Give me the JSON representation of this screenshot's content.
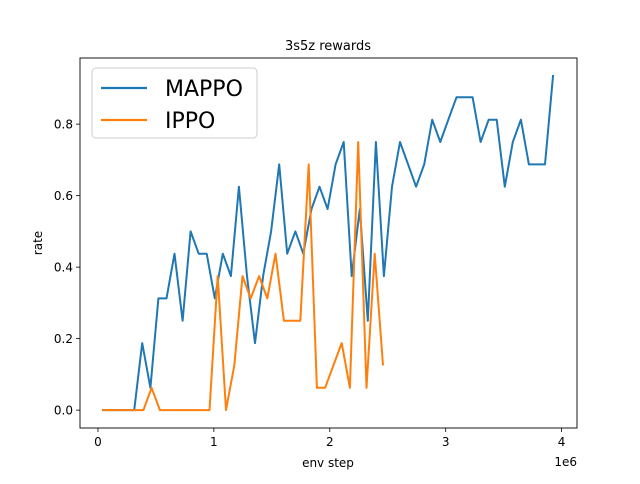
{
  "chart_data": {
    "type": "line",
    "title": "3s5z rewards",
    "xlabel": "env step",
    "ylabel": "rate",
    "x_multiplier_label": "1e6",
    "xlim": [
      -0.155,
      4.133
    ],
    "ylim": [
      -0.05,
      0.985
    ],
    "x_ticks": [
      0,
      1,
      2,
      3,
      4
    ],
    "x_tick_labels": [
      "0",
      "1",
      "2",
      "3",
      "4"
    ],
    "y_ticks": [
      0.0,
      0.2,
      0.4,
      0.6,
      0.8
    ],
    "y_tick_labels": [
      "0.0",
      "0.2",
      "0.4",
      "0.6",
      "0.8"
    ],
    "grid": false,
    "legend_position": "top-left",
    "series": [
      {
        "name": "MAPPO",
        "color": "#1f77b4",
        "x": [
          0.035,
          0.104,
          0.174,
          0.243,
          0.313,
          0.382,
          0.452,
          0.521,
          0.591,
          0.66,
          0.73,
          0.799,
          0.869,
          0.938,
          1.008,
          1.077,
          1.147,
          1.216,
          1.286,
          1.355,
          1.425,
          1.494,
          1.564,
          1.633,
          1.703,
          1.772,
          1.842,
          1.911,
          1.981,
          2.05,
          2.12,
          2.189,
          2.259,
          2.328,
          2.398,
          2.467,
          2.537,
          2.606,
          2.676,
          2.745,
          2.815,
          2.884,
          2.954,
          3.023,
          3.093,
          3.162,
          3.232,
          3.301,
          3.371,
          3.44,
          3.51,
          3.579,
          3.649,
          3.718,
          3.788,
          3.857,
          3.927
        ],
        "y": [
          0,
          0,
          0,
          0,
          0,
          0.1875,
          0.0625,
          0.3125,
          0.3125,
          0.4375,
          0.25,
          0.5,
          0.4375,
          0.4375,
          0.3125,
          0.4375,
          0.375,
          0.625,
          0.375,
          0.1875,
          0.375,
          0.5,
          0.6875,
          0.4375,
          0.5,
          0.4375,
          0.5625,
          0.625,
          0.5625,
          0.6875,
          0.75,
          0.375,
          0.5625,
          0.25,
          0.75,
          0.375,
          0.625,
          0.75,
          0.6875,
          0.625,
          0.6875,
          0.8125,
          0.75,
          0.8125,
          0.875,
          0.875,
          0.875,
          0.75,
          0.8125,
          0.8125,
          0.625,
          0.75,
          0.8125,
          0.6875,
          0.6875,
          0.6875,
          0.9375
        ]
      },
      {
        "name": "IPPO",
        "color": "#ff7f0e",
        "x": [
          0.035,
          0.106,
          0.178,
          0.249,
          0.32,
          0.392,
          0.463,
          0.534,
          0.605,
          0.677,
          0.748,
          0.819,
          0.891,
          0.962,
          1.033,
          1.105,
          1.176,
          1.247,
          1.318,
          1.39,
          1.461,
          1.532,
          1.604,
          1.675,
          1.746,
          1.818,
          1.889,
          1.96,
          2.031,
          2.103,
          2.174,
          2.245,
          2.317,
          2.388,
          2.459
        ],
        "y": [
          0,
          0,
          0,
          0,
          0,
          0,
          0.0625,
          0,
          0,
          0,
          0,
          0,
          0,
          0,
          0.375,
          0,
          0.125,
          0.375,
          0.3125,
          0.375,
          0.3125,
          0.4375,
          0.25,
          0.25,
          0.25,
          0.6875,
          0.0625,
          0.0625,
          0.125,
          0.1875,
          0.0625,
          0.75,
          0.0625,
          0.4375,
          0.125
        ]
      }
    ]
  }
}
